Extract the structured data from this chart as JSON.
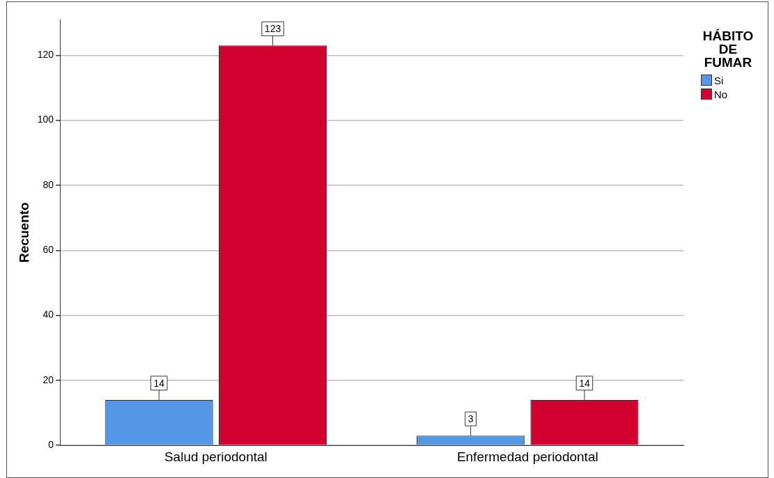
{
  "chart_data": {
    "type": "bar",
    "ylabel": "Recuento",
    "legend_title": "HÁBITO DE FUMAR",
    "categories": [
      "Salud periodontal",
      "Enfermedad periodontal"
    ],
    "series": [
      {
        "name": "Si",
        "color": "#5596e6",
        "values": [
          14,
          3
        ]
      },
      {
        "name": "No",
        "color": "#d2002e",
        "values": [
          123,
          14
        ]
      }
    ],
    "ylim": [
      0,
      131
    ],
    "yticks": [
      0,
      20,
      40,
      60,
      80,
      100,
      120
    ],
    "grid": "y",
    "legend": "top right",
    "data_labels": true
  }
}
